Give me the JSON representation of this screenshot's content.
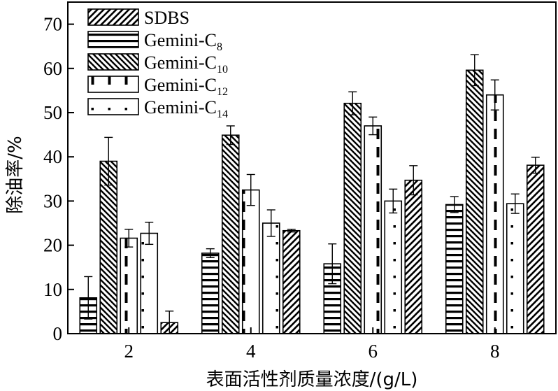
{
  "chart_data": {
    "type": "bar",
    "xlabel": "表面活性剂质量浓度/(g/L)",
    "ylabel": "除油率/%",
    "ylim": [
      0,
      75
    ],
    "yticks": [
      0,
      10,
      20,
      30,
      40,
      50,
      60,
      70
    ],
    "categories": [
      "2",
      "4",
      "6",
      "8"
    ],
    "grid": false,
    "legend_position": "top-left",
    "series": [
      {
        "name": "SDBS",
        "legend_main": "SDBS",
        "legend_sub": "",
        "pattern": "diag-fwd",
        "values": [
          2.5,
          23.3,
          34.7,
          38.1
        ],
        "errors": [
          2.6,
          0.3,
          3.3,
          1.8
        ]
      },
      {
        "name": "Gemini-C8",
        "legend_main": "Gemini-C",
        "legend_sub": "8",
        "pattern": "horiz",
        "values": [
          8.1,
          18.2,
          15.8,
          29.2
        ],
        "errors": [
          4.8,
          1.0,
          4.5,
          1.8
        ]
      },
      {
        "name": "Gemini-C10",
        "legend_main": "Gemini-C",
        "legend_sub": "10",
        "pattern": "diag-back",
        "values": [
          39.0,
          44.9,
          52.1,
          59.6
        ],
        "errors": [
          5.4,
          2.1,
          2.6,
          3.5
        ]
      },
      {
        "name": "Gemini-C12",
        "legend_main": "Gemini-C",
        "legend_sub": "12",
        "pattern": "vdash",
        "values": [
          21.6,
          32.5,
          47.0,
          54.0
        ],
        "errors": [
          2.0,
          3.5,
          2.0,
          3.4
        ]
      },
      {
        "name": "Gemini-C14",
        "legend_main": "Gemini-C",
        "legend_sub": "14",
        "pattern": "dots",
        "values": [
          22.7,
          25.0,
          30.0,
          29.4
        ],
        "errors": [
          2.5,
          3.0,
          2.7,
          2.2
        ]
      }
    ],
    "bar_order": [
      "Gemini-C8",
      "Gemini-C10",
      "Gemini-C12",
      "Gemini-C14",
      "SDBS"
    ]
  }
}
